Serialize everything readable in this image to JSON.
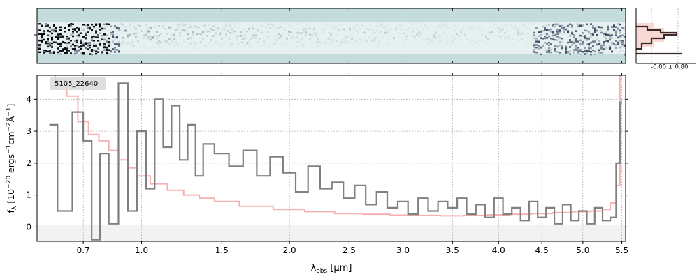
{
  "chart_data": [
    {
      "type": "heatmap",
      "panel": "2d-spectrum",
      "colormap": "bone-teal (blue-grey on pale teal)",
      "background_color": "#c5dcdc",
      "trace_color": "#2f3a55",
      "x_range_um": [
        0.5,
        5.55
      ]
    },
    {
      "type": "line",
      "panel": "1d-spectrum",
      "label": "5105_22640",
      "xlabel": "λobs [μm]",
      "ylabel": "fλ [10−20 ergs−1cm−2Å−1]",
      "xlabel_parts": {
        "lambda": "λ",
        "sub": "obs",
        "rest": " [μm]"
      },
      "ylabel_parts": {
        "f": "f",
        "sub": "λ",
        "a": " [10",
        "e1": "−20",
        "b": " ergs",
        "e2": "−1",
        "c": "cm",
        "e3": "−2",
        "d": "Å",
        "e4": "−1",
        "e": "]"
      },
      "x_scale": "sqrt",
      "xlim": [
        0.5,
        5.55
      ],
      "ylim": [
        -0.45,
        4.75
      ],
      "grid": true,
      "x_ticks": [
        0.7,
        1.0,
        1.5,
        2.0,
        2.5,
        3.0,
        3.5,
        4.0,
        4.5,
        5.0,
        5.5
      ],
      "x_tick_labels": [
        "0.7",
        "1.0",
        "1.5",
        "2.0",
        "2.5",
        "3.0",
        "3.5",
        "4.0",
        "4.5",
        "5.0",
        "5.5"
      ],
      "y_ticks": [
        0,
        1,
        2,
        3,
        4
      ],
      "y_tick_labels": [
        "0",
        "1",
        "2",
        "3",
        "4"
      ],
      "colors": {
        "flux": "#808080",
        "error": "#f4a9a8",
        "zero_band": "#e6e6e6",
        "label_box": "#d9d9d9"
      },
      "series": [
        {
          "role": "flux",
          "x": [
            0.55,
            0.62,
            0.68,
            0.72,
            0.76,
            0.8,
            0.85,
            0.9,
            0.95,
            1.0,
            1.05,
            1.1,
            1.15,
            1.2,
            1.25,
            1.3,
            1.35,
            1.4,
            1.5,
            1.6,
            1.7,
            1.8,
            1.9,
            2.0,
            2.1,
            2.2,
            2.3,
            2.4,
            2.5,
            2.6,
            2.7,
            2.8,
            2.9,
            3.0,
            3.1,
            3.2,
            3.3,
            3.4,
            3.5,
            3.6,
            3.7,
            3.8,
            3.9,
            4.0,
            4.1,
            4.2,
            4.3,
            4.4,
            4.5,
            4.6,
            4.7,
            4.8,
            4.9,
            5.0,
            5.1,
            5.2,
            5.3,
            5.4,
            5.45,
            5.5
          ],
          "values": [
            3.2,
            0.5,
            3.6,
            2.7,
            -0.4,
            2.3,
            0.1,
            4.5,
            0.5,
            3.0,
            1.2,
            4.0,
            2.5,
            3.8,
            2.1,
            3.2,
            1.6,
            2.6,
            2.3,
            1.9,
            2.4,
            1.6,
            2.2,
            1.7,
            1.1,
            1.9,
            1.2,
            1.4,
            0.9,
            1.3,
            0.7,
            1.1,
            0.6,
            0.8,
            0.4,
            0.9,
            0.5,
            0.8,
            0.6,
            0.9,
            0.4,
            0.7,
            0.3,
            0.9,
            0.4,
            0.6,
            0.2,
            0.8,
            0.3,
            0.6,
            0.1,
            0.7,
            0.2,
            0.5,
            0.1,
            0.6,
            0.2,
            0.3,
            2.0,
            3.9
          ]
        },
        {
          "role": "error",
          "x": [
            0.55,
            0.6,
            0.65,
            0.7,
            0.75,
            0.8,
            0.85,
            0.9,
            0.95,
            1.0,
            1.1,
            1.2,
            1.3,
            1.4,
            1.5,
            1.75,
            2.0,
            2.25,
            2.5,
            2.75,
            3.0,
            3.25,
            3.5,
            3.75,
            4.0,
            4.25,
            4.5,
            4.75,
            5.0,
            5.2,
            5.3,
            5.4,
            5.45,
            5.5
          ],
          "values": [
            4.8,
            4.6,
            4.1,
            3.3,
            2.9,
            2.7,
            2.4,
            2.1,
            1.85,
            1.6,
            1.35,
            1.15,
            1.0,
            0.9,
            0.8,
            0.65,
            0.55,
            0.48,
            0.42,
            0.4,
            0.37,
            0.36,
            0.35,
            0.36,
            0.38,
            0.4,
            0.42,
            0.45,
            0.48,
            0.5,
            0.55,
            0.75,
            1.3,
            4.8
          ]
        }
      ]
    },
    {
      "type": "bar",
      "panel": "residual-histogram",
      "annotation": "-0.00 ± 0.80",
      "colors": {
        "fill": "#f8d0c8",
        "outline": "#3a2a28",
        "line": "#7a3a30"
      }
    }
  ]
}
